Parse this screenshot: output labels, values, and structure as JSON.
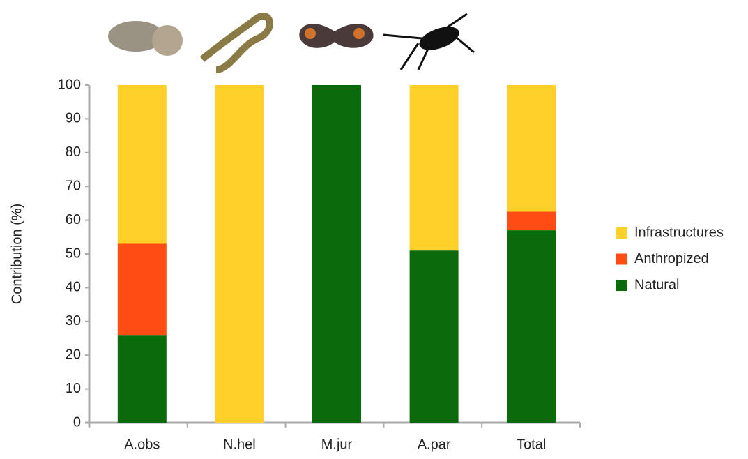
{
  "chart_data": {
    "type": "stacked_bar",
    "y_label": "Contribution (%)",
    "categories": [
      "A.obs",
      "N.hel",
      "M.jur",
      "A.par",
      "Total"
    ],
    "series": [
      {
        "name": "Natural",
        "color": "#0b6b0b",
        "values": [
          26,
          0,
          100,
          51,
          57
        ]
      },
      {
        "name": "Anthropized",
        "color": "#ff4d14",
        "values": [
          27,
          0,
          0,
          0,
          5.5
        ]
      },
      {
        "name": "Infrastructures",
        "color": "#ffcf2a",
        "values": [
          47,
          100,
          0,
          49,
          37.5
        ]
      }
    ],
    "ylim": [
      0,
      100
    ],
    "yticks": [
      0,
      10,
      20,
      30,
      40,
      50,
      60,
      70,
      80,
      90,
      100
    ],
    "legend": "right"
  }
}
